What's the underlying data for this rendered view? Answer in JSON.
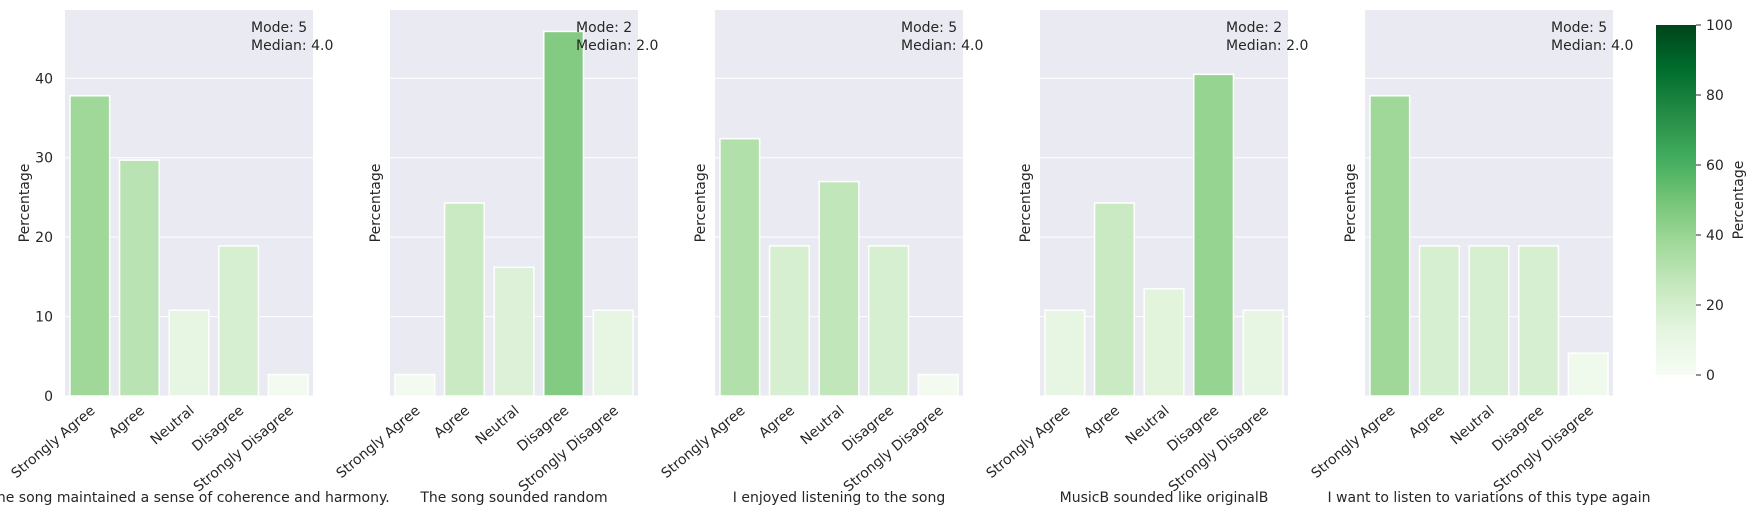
{
  "chart_data": {
    "type": "bar",
    "categories": [
      "Strongly Agree",
      "Agree",
      "Neutral",
      "Disagree",
      "Strongly Disagree"
    ],
    "ylabel": "Percentage",
    "ylim": [
      0,
      48.6
    ],
    "yticks": [
      0,
      10,
      20,
      30,
      40
    ],
    "grid": true,
    "colormap": "Greens",
    "colorbar": {
      "label": "Percentage",
      "ticks": [
        0,
        20,
        40,
        60,
        80,
        100
      ],
      "range": [
        0,
        100
      ]
    },
    "panels": [
      {
        "xlabel": "The song maintained a sense of coherence and harmony.",
        "values": [
          37.8,
          29.7,
          10.8,
          18.9,
          2.7
        ],
        "annotation": [
          "Mode: 5",
          "Median: 4.0"
        ]
      },
      {
        "xlabel": "The song sounded random",
        "values": [
          2.7,
          24.3,
          16.2,
          45.9,
          10.8
        ],
        "annotation": [
          "Mode: 2",
          "Median: 2.0"
        ]
      },
      {
        "xlabel": "I enjoyed listening to the song",
        "values": [
          32.4,
          18.9,
          27.0,
          18.9,
          2.7
        ],
        "annotation": [
          "Mode: 5",
          "Median: 4.0"
        ]
      },
      {
        "xlabel": "MusicB sounded like originalB",
        "values": [
          10.8,
          24.3,
          13.5,
          40.5,
          10.8
        ],
        "annotation": [
          "Mode: 2",
          "Median: 2.0"
        ]
      },
      {
        "xlabel": "I want to listen to variations of this type again",
        "values": [
          37.8,
          18.9,
          18.9,
          18.9,
          5.4
        ],
        "annotation": [
          "Mode: 5",
          "Median: 4.0"
        ]
      }
    ]
  }
}
